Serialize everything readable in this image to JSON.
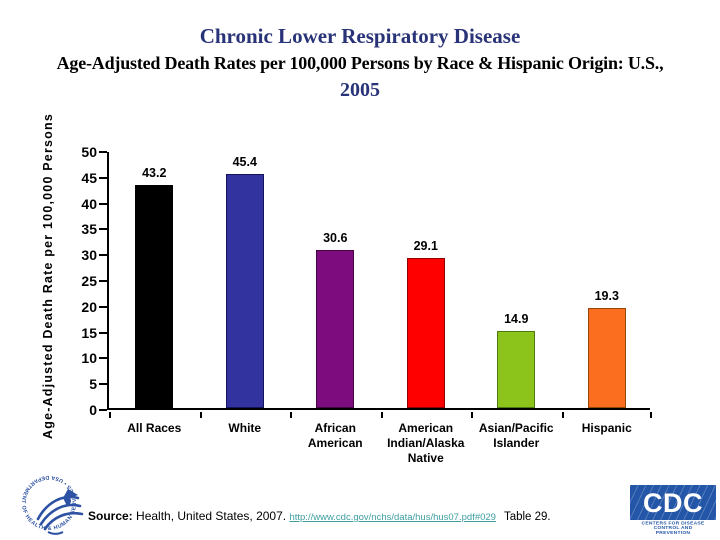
{
  "title": {
    "line1": "Chronic Lower Respiratory Disease",
    "line2": "Age-Adjusted Death Rates per 100,000 Persons by Race & Hispanic Origin: U.S.,",
    "line3": "2005"
  },
  "chart_data": {
    "type": "bar",
    "title": "Chronic Lower Respiratory Disease Age-Adjusted Death Rates per 100,000 Persons by Race & Hispanic Origin: U.S., 2005",
    "categories": [
      "All Races",
      "White",
      "African American",
      "American Indian/Alaska Native",
      "Asian/Pacific Islander",
      "Hispanic"
    ],
    "category_lines": [
      [
        "All Races"
      ],
      [
        "White"
      ],
      [
        "African",
        "American"
      ],
      [
        "American",
        "Indian/Alaska",
        "Native"
      ],
      [
        "Asian/Pacific",
        "Islander"
      ],
      [
        "Hispanic"
      ]
    ],
    "values": [
      43.2,
      45.4,
      30.6,
      29.1,
      14.9,
      19.3
    ],
    "value_labels": [
      "43.2",
      "45.4",
      "30.6",
      "29.1",
      "14.9",
      "19.3"
    ],
    "bar_colors": [
      "#000000",
      "#3333a0",
      "#7d0c7e",
      "#fe0000",
      "#8cc41c",
      "#fb6e20"
    ],
    "bar_border_colors": [
      "#000000",
      "#14145c",
      "#43053f",
      "#8f0000",
      "#4e7a12",
      "#96480a"
    ],
    "xlabel": "",
    "ylabel": "Age-Adjusted Death Rate per 100,000 Persons",
    "ylim": [
      0,
      50
    ],
    "ytick_step": 5,
    "grid": false,
    "legend": "none"
  },
  "footer": {
    "source_label": "Source:",
    "source_text": " Health, United States, 2007. ",
    "source_link": "http://www.cdc.gov/nchs/data/hus/hus07.pdf#029",
    "table_ref": "Table 29."
  },
  "logos": {
    "hhs_ring_text": "DEPARTMENT OF HEALTH & HUMAN SERVICES • USA",
    "cdc_acronym": "CDC",
    "cdc_caption_line1": "CENTERS FOR DISEASE",
    "cdc_caption_line2": "CONTROL AND PREVENTION"
  },
  "colors": {
    "title_navy": "#293377",
    "link_teal": "#3d9ea0",
    "cdc_blue": "#2456a8",
    "hhs_blue": "#2d51a3"
  }
}
